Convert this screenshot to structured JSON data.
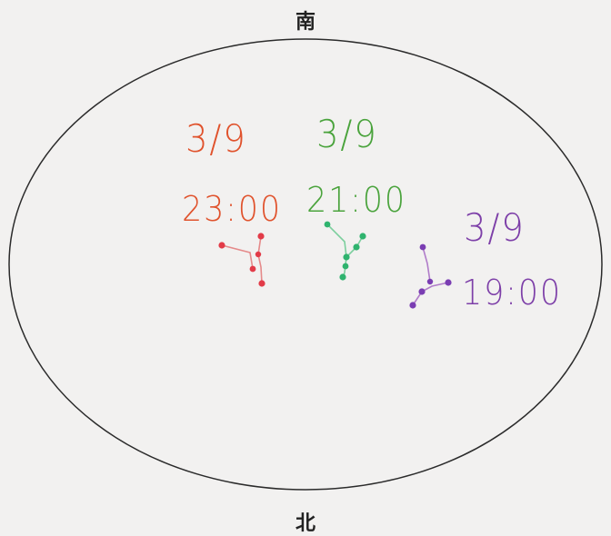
{
  "directions": {
    "south": "南",
    "north": "北"
  },
  "observations": [
    {
      "name": "red",
      "date": "3/9",
      "time": "23:00",
      "color": "#e0522c",
      "line_color": "#e58a8a",
      "star_color": "#e23b48"
    },
    {
      "name": "green",
      "date": "3/9",
      "time": "21:00",
      "color": "#4aa33c",
      "line_color": "#7ccf9d",
      "star_color": "#2fb36e"
    },
    {
      "name": "purple",
      "date": "3/9",
      "time": "19:00",
      "color": "#7d3fa8",
      "line_color": "#b07cc9",
      "star_color": "#7a3db2"
    }
  ],
  "colors": {
    "background": "#f2f1f0",
    "horizon": "#2b2b2b",
    "label": "#222222"
  }
}
